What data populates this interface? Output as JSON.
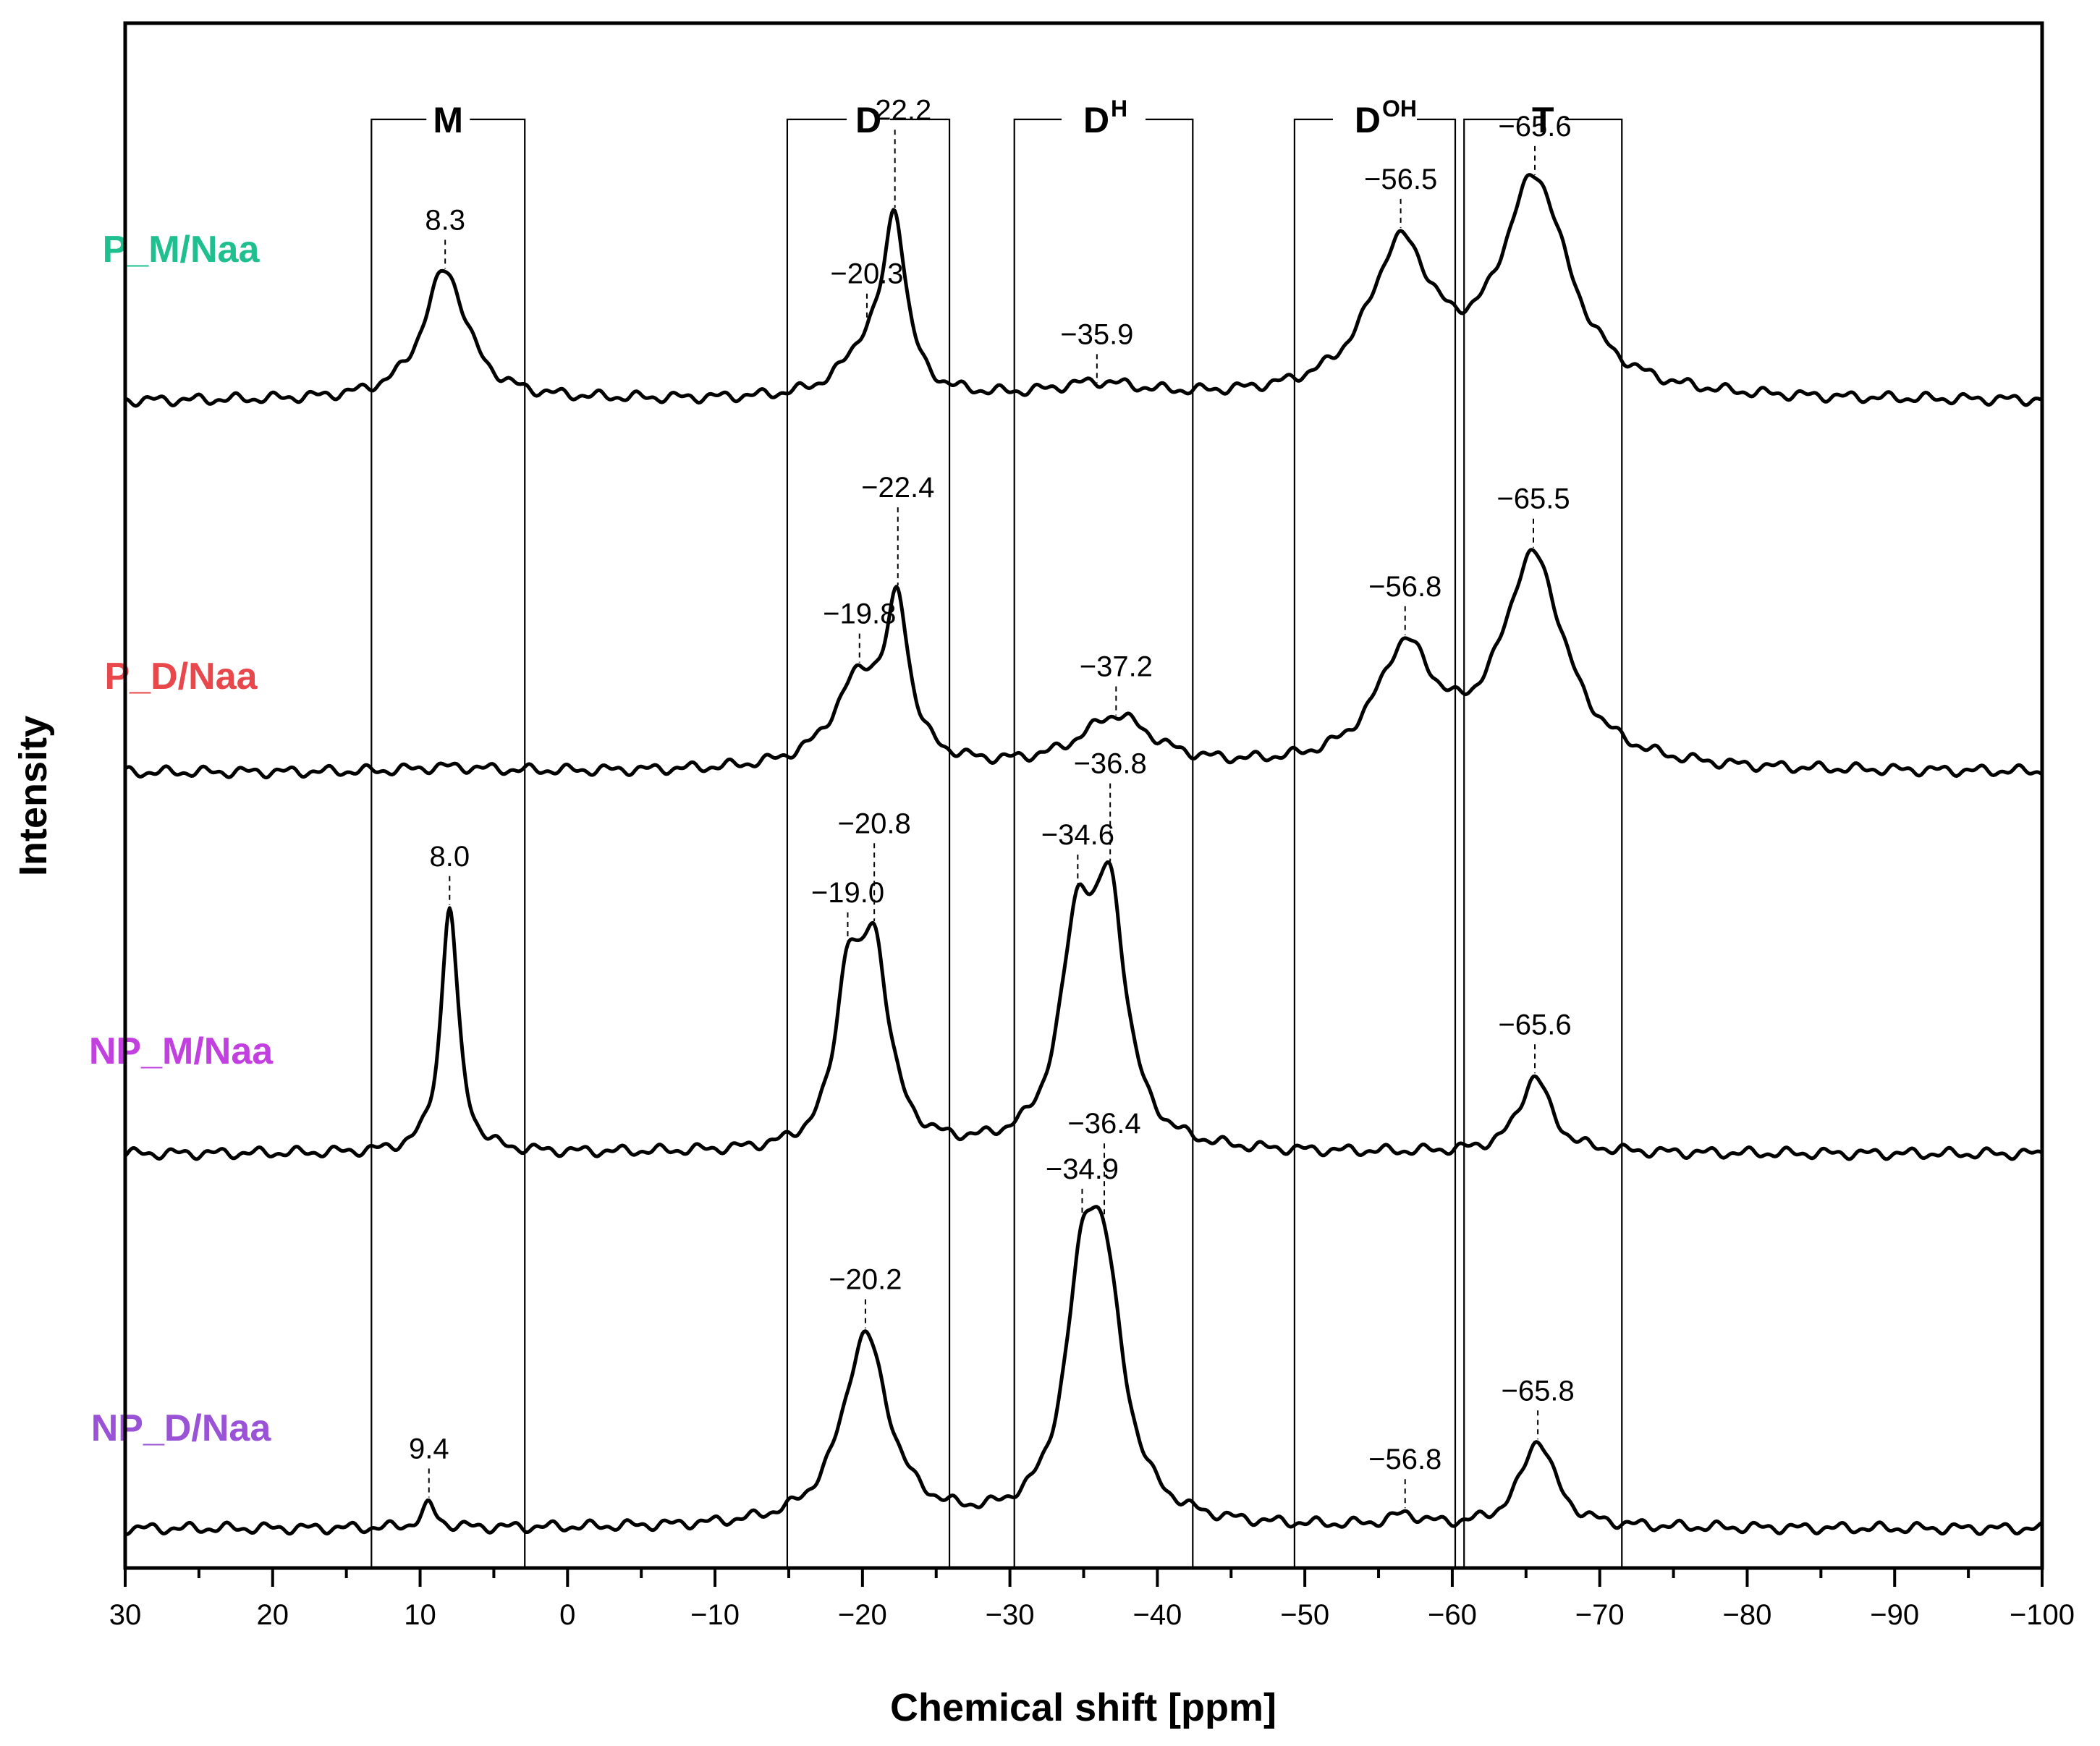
{
  "chart_data": {
    "type": "line",
    "title": "",
    "xlabel": "Chemical shift [ppm]",
    "ylabel": "Intensity",
    "xlim": [
      30,
      -100
    ],
    "x_reversed": true,
    "x_ticks": [
      30,
      20,
      10,
      0,
      -10,
      -20,
      -30,
      -40,
      -50,
      -60,
      -70,
      -80,
      -90,
      -100
    ],
    "x_tick_labels": [
      "30",
      "20",
      "10",
      "0",
      "−10",
      "−20",
      "−30",
      "−40",
      "−50",
      "−60",
      "−70",
      "−80",
      "−90",
      "−100"
    ],
    "y_ticks_shown": false,
    "grid": false,
    "regions": [
      {
        "label": "M",
        "sup": "",
        "from": 13.3,
        "to": 2.9
      },
      {
        "label": "D",
        "sup": "",
        "from": -14.9,
        "to": -25.9
      },
      {
        "label": "D",
        "sup": "H",
        "from": -30.3,
        "to": -42.4
      },
      {
        "label": "D",
        "sup": "OH",
        "from": -49.3,
        "to": -60.2
      },
      {
        "label": "T",
        "sup": "",
        "from": -60.8,
        "to": -71.5
      }
    ],
    "series": [
      {
        "name": "P_M/Naa",
        "color": "#1fbf8f",
        "baseline": 0.0,
        "peaks": [
          {
            "x": 8.3,
            "height": 0.82,
            "width": 1.8,
            "label": "8.3"
          },
          {
            "x": -20.3,
            "height": 0.28,
            "width": 2.0,
            "label": "−20.3"
          },
          {
            "x": -22.2,
            "height": 1.05,
            "width": 0.9,
            "label": "−22.2"
          },
          {
            "x": -35.9,
            "height": 0.09,
            "width": 3.5,
            "label": "−35.9"
          },
          {
            "x": -56.5,
            "height": 0.92,
            "width": 2.6,
            "label": "−56.5"
          },
          {
            "x": -65.6,
            "height": 1.35,
            "width": 2.8,
            "label": "−65.6"
          }
        ]
      },
      {
        "name": "P_D/Naa",
        "color": "#e8474b",
        "baseline": 0.0,
        "peaks": [
          {
            "x": -19.8,
            "height": 0.55,
            "width": 2.2,
            "label": "−19.8"
          },
          {
            "x": -22.4,
            "height": 0.9,
            "width": 0.9,
            "label": "−22.4"
          },
          {
            "x": -37.2,
            "height": 0.33,
            "width": 3.0,
            "label": "−37.2"
          },
          {
            "x": 8.0,
            "height": 0.03,
            "width": 3.0,
            "label": ""
          },
          {
            "x": -56.8,
            "height": 0.72,
            "width": 2.4,
            "label": "−56.8"
          },
          {
            "x": -65.5,
            "height": 1.32,
            "width": 2.6,
            "label": "−65.5"
          }
        ]
      },
      {
        "name": "NP_M/Naa",
        "color": "#c23fe0",
        "baseline": 0.0,
        "peaks": [
          {
            "x": 8.0,
            "height": 1.55,
            "width": 0.7,
            "label": "8.0"
          },
          {
            "x": -19.0,
            "height": 0.95,
            "width": 1.0,
            "label": "−19.0"
          },
          {
            "x": -20.8,
            "height": 1.2,
            "width": 1.2,
            "label": "−20.8"
          },
          {
            "x": -34.6,
            "height": 1.3,
            "width": 1.4,
            "label": "−34.6"
          },
          {
            "x": -36.8,
            "height": 1.42,
            "width": 1.3,
            "label": "−36.8"
          },
          {
            "x": -65.6,
            "height": 0.48,
            "width": 1.3,
            "label": "−65.6"
          }
        ]
      },
      {
        "name": "NP_D/Naa",
        "color": "#9a52d6",
        "baseline": 0.0,
        "peaks": [
          {
            "x": 9.4,
            "height": 0.14,
            "width": 0.6,
            "label": "9.4"
          },
          {
            "x": -20.2,
            "height": 1.2,
            "width": 1.9,
            "label": "−20.2"
          },
          {
            "x": -34.9,
            "height": 1.18,
            "width": 1.4,
            "label": "−34.9"
          },
          {
            "x": -36.4,
            "height": 1.35,
            "width": 1.6,
            "label": "−36.4"
          },
          {
            "x": -56.8,
            "height": 0.07,
            "width": 1.2,
            "label": "−56.8"
          },
          {
            "x": -65.8,
            "height": 0.55,
            "width": 1.4,
            "label": "−65.8"
          }
        ]
      }
    ]
  }
}
